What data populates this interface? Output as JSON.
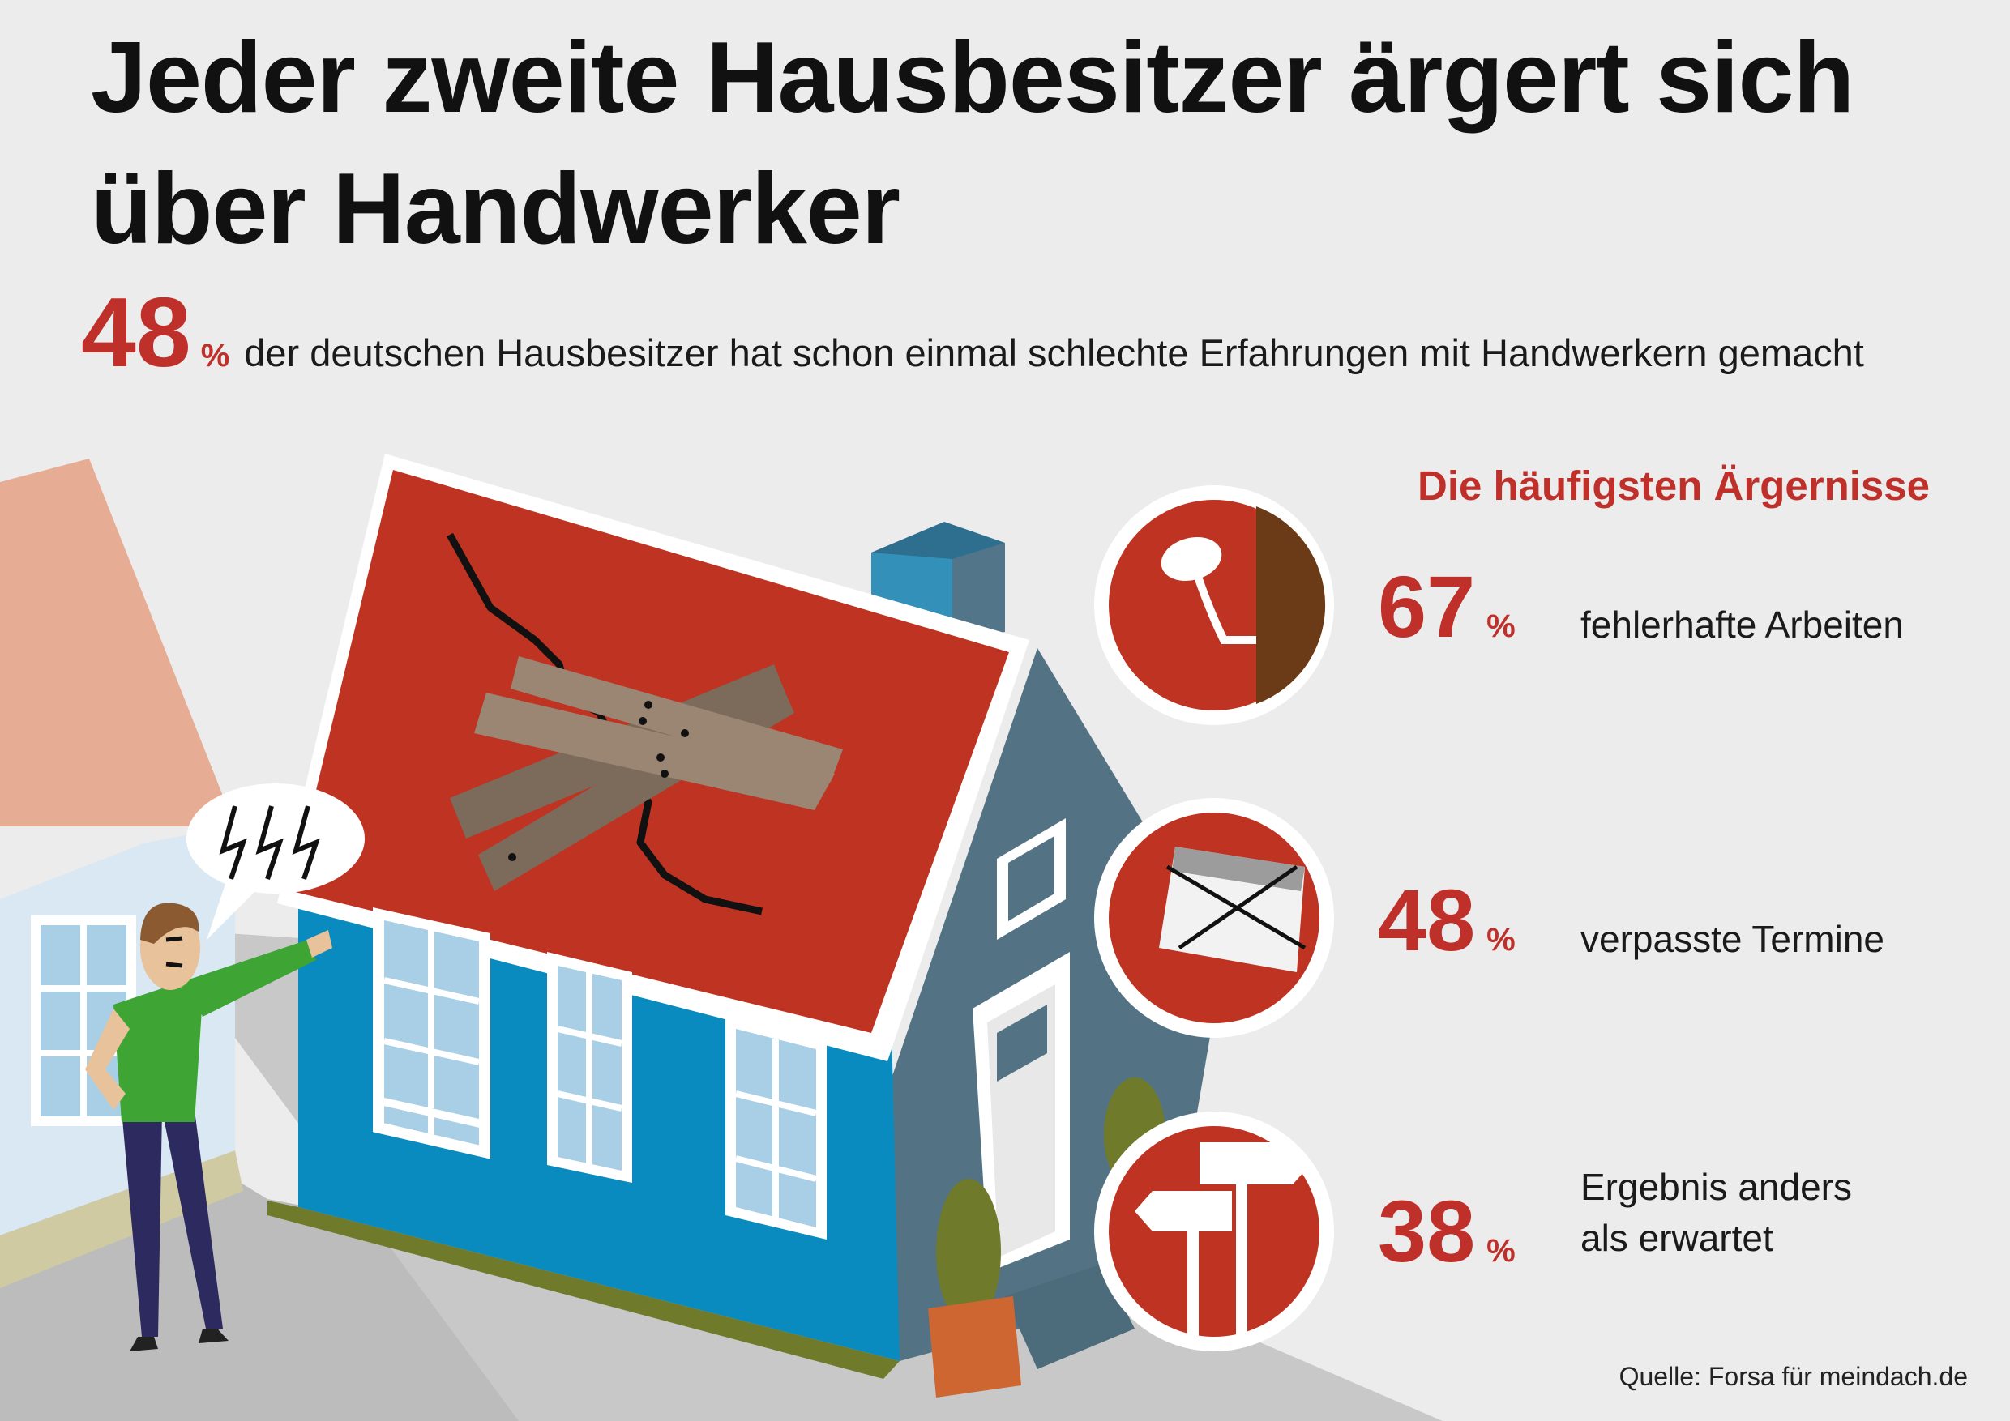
{
  "title": {
    "line1": "Jeder zweite Hausbesitzer ärgert sich",
    "line2": "über Handwerker"
  },
  "headline_stat": {
    "value": "48",
    "unit": "%",
    "text": "der deutschen Hausbesitzer hat schon einmal schlechte Erfahrungen mit Handwerkern gemacht"
  },
  "section_title": "Die häufigsten Ärgernisse",
  "items": [
    {
      "value": "67",
      "unit": "%",
      "label": "fehlerhafte Arbeiten",
      "icon": "bent-nail-icon"
    },
    {
      "value": "48",
      "unit": "%",
      "label": "verpasste Termine",
      "icon": "crossed-calendar-icon"
    },
    {
      "value": "38",
      "unit": "%",
      "label_line1": "Ergebnis anders",
      "label_line2": "als erwartet",
      "icon": "signpost-icon"
    }
  ],
  "source": "Quelle: Forsa für meindach.de",
  "colors": {
    "accent_red": "#c0302a",
    "roof_red": "#bf3322",
    "house_blue": "#0a8bbf",
    "house_side": "#537384",
    "shirt_green": "#3ea535",
    "background": "#ececec"
  }
}
